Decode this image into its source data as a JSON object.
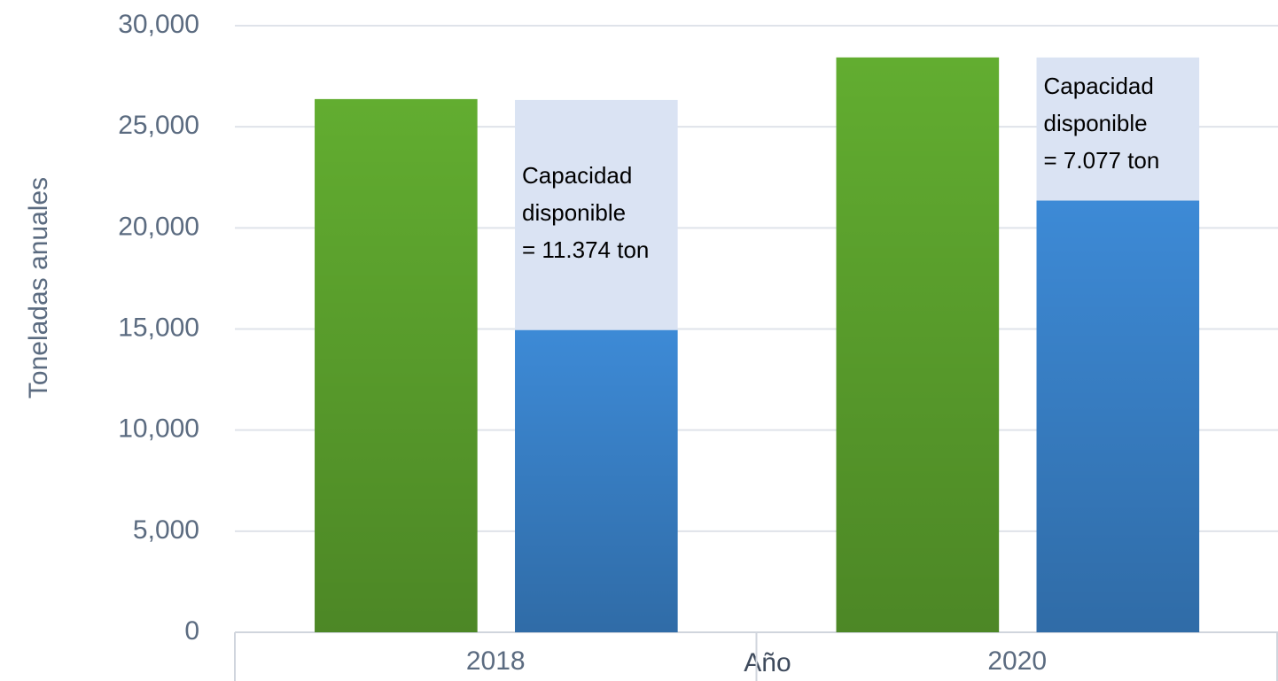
{
  "chart_data": {
    "type": "bar",
    "stacked": true,
    "x_label": "Año",
    "y_label": "Toneladas anuales",
    "categories": [
      "2018",
      "2020"
    ],
    "series": [
      {
        "color": "#62ad30",
        "values": [
          26370,
          28430
        ],
        "stack": "a"
      },
      {
        "color": "#3d8ad6",
        "values": [
          14950,
          21350
        ],
        "stack": "b"
      },
      {
        "color": "#dae3f3",
        "values": [
          11374,
          7077
        ],
        "stack": "b",
        "value_labels": [
          [
            "Capacidad",
            "disponible",
            "= 11.374 ton"
          ],
          [
            "Capacidad",
            "disponible",
            "= 7.077 ton"
          ]
        ]
      }
    ],
    "ylim": [
      0,
      30000
    ],
    "yticks": [
      0,
      {
        "value": 5000,
        "label": "5,000"
      },
      {
        "value": 10000,
        "label": "10,000"
      },
      {
        "value": 15000,
        "label": "15,000"
      },
      {
        "value": 20000,
        "label": "20,000"
      },
      {
        "value": 25000,
        "label": "25,000"
      },
      {
        "value": 30000,
        "label": "30,000"
      }
    ],
    "grid": true
  }
}
